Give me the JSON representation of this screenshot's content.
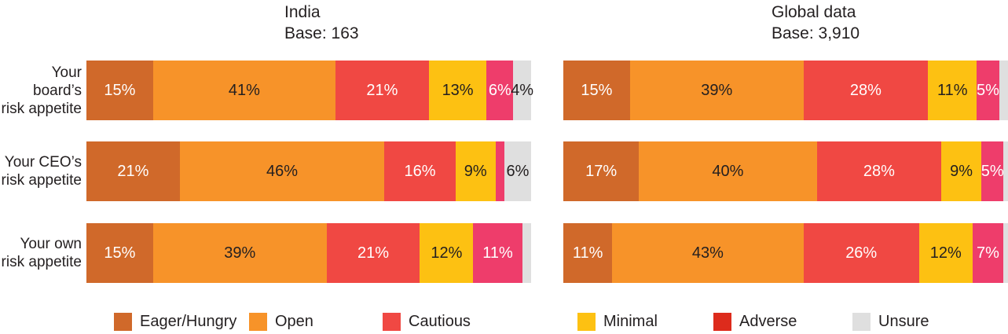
{
  "chart_data": [
    {
      "type": "bar",
      "stacked": true,
      "orientation": "horizontal",
      "title": "India",
      "subtitle": "Base: 163",
      "categories": [
        "Your board’s risk appetite",
        "Your CEO’s risk appetite",
        "Your own risk appetite"
      ],
      "series": [
        {
          "name": "Eager/Hungry",
          "color": "#d0692a",
          "label_color": "#ffffff",
          "values": [
            15,
            21,
            15
          ]
        },
        {
          "name": "Open",
          "color": "#f79329",
          "label_color": "#231f20",
          "values": [
            41,
            46,
            39
          ]
        },
        {
          "name": "Cautious",
          "color": "#f04843",
          "label_color": "#ffffff",
          "values": [
            21,
            16,
            21
          ]
        },
        {
          "name": "Minimal",
          "color": "#fdc112",
          "label_color": "#231f20",
          "values": [
            13,
            9,
            12
          ]
        },
        {
          "name": "Adverse",
          "color": "#ee3d6b",
          "label_color": "#ffffff",
          "values": [
            6,
            2,
            11
          ]
        },
        {
          "name": "Unsure",
          "color": "#dfdfdf",
          "label_color": "#231f20",
          "values": [
            4,
            6,
            2
          ]
        }
      ],
      "value_suffix": "%",
      "min_labeled_value": 4,
      "xlim": [
        0,
        100
      ],
      "grid": false,
      "legend_position": "bottom"
    },
    {
      "type": "bar",
      "stacked": true,
      "orientation": "horizontal",
      "title": "Global data",
      "subtitle": "Base: 3,910",
      "categories": [
        "Your board’s risk appetite",
        "Your CEO’s risk appetite",
        "Your own risk appetite"
      ],
      "series": [
        {
          "name": "Eager/Hungry",
          "color": "#d0692a",
          "label_color": "#ffffff",
          "values": [
            15,
            17,
            11
          ]
        },
        {
          "name": "Open",
          "color": "#f79329",
          "label_color": "#231f20",
          "values": [
            39,
            40,
            43
          ]
        },
        {
          "name": "Cautious",
          "color": "#f04843",
          "label_color": "#ffffff",
          "values": [
            28,
            28,
            26
          ]
        },
        {
          "name": "Minimal",
          "color": "#fdc112",
          "label_color": "#231f20",
          "values": [
            11,
            9,
            12
          ]
        },
        {
          "name": "Adverse",
          "color": "#ee3d6b",
          "label_color": "#ffffff",
          "values": [
            5,
            5,
            7
          ]
        },
        {
          "name": "Unsure",
          "color": "#dfdfdf",
          "label_color": "#231f20",
          "values": [
            2,
            1,
            1
          ]
        }
      ],
      "value_suffix": "%",
      "min_labeled_value": 4,
      "xlim": [
        0,
        100
      ],
      "grid": false,
      "legend_position": "bottom"
    }
  ],
  "row_labels": [
    "Your board’s\nrisk appetite",
    "Your CEO’s\nrisk appetite",
    "Your own\nrisk appetite"
  ],
  "legend": {
    "items": [
      {
        "label": "Eager/Hungry",
        "color": "#d0692a"
      },
      {
        "label": "Open",
        "color": "#f79329"
      },
      {
        "label": "Cautious",
        "color": "#f04843"
      },
      {
        "label": "Minimal",
        "color": "#fdc112"
      },
      {
        "label": "Adverse",
        "color": "#dd2b1c"
      },
      {
        "label": "Unsure",
        "color": "#dfdfdf"
      }
    ]
  }
}
